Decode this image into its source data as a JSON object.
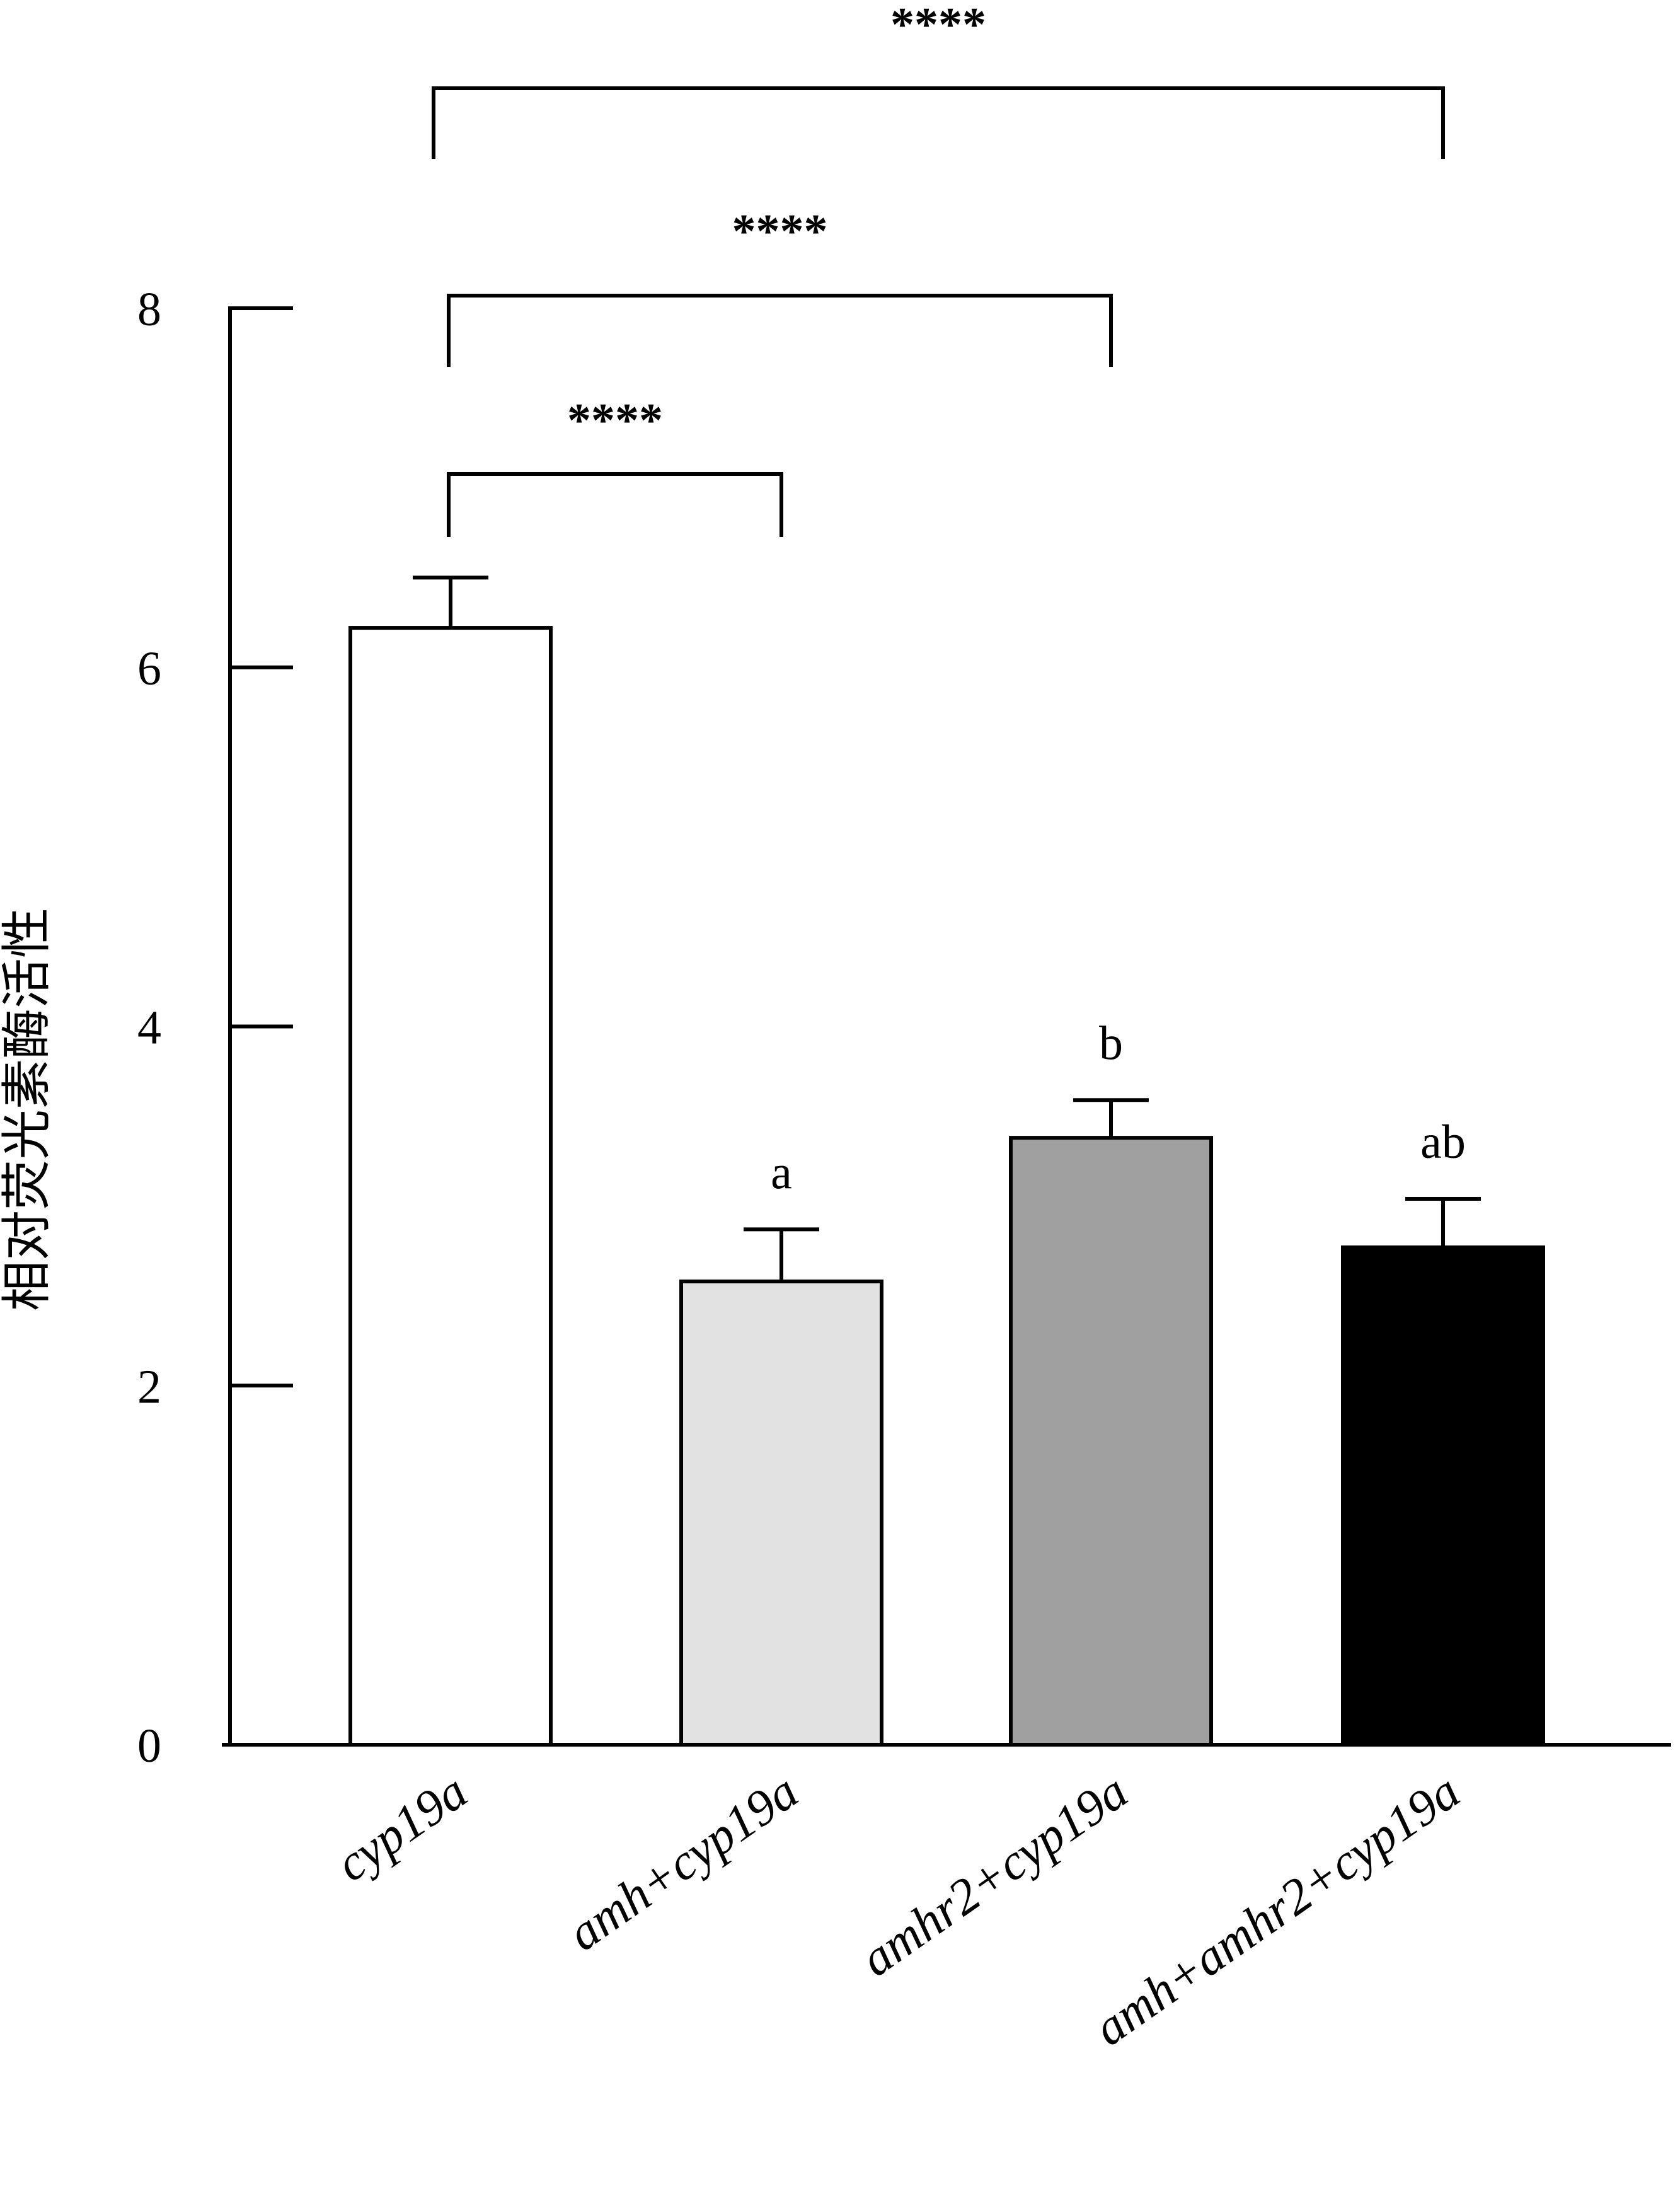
{
  "chart_data": {
    "type": "bar",
    "ylabel": "相对荧光素酶活性",
    "xlabel": "",
    "ylim": [
      0,
      8
    ],
    "yticks": [
      0,
      2,
      4,
      6,
      8
    ],
    "grid": false,
    "categories": [
      "cyp19a",
      "amh+cyp19a",
      "amhr2+cyp19a",
      "amh+amhr2+cyp19a"
    ],
    "values": [
      6.22,
      2.58,
      3.38,
      2.77
    ],
    "errors": [
      0.28,
      0.29,
      0.21,
      0.27
    ],
    "bar_colors": [
      "#ffffff",
      "#e2e2e2",
      "#a0a0a0",
      "#000000"
    ],
    "letters": [
      "",
      "a",
      "b",
      "ab"
    ],
    "comparisons": [
      {
        "from": 0,
        "to": 1,
        "label": "****"
      },
      {
        "from": 0,
        "to": 2,
        "label": "****"
      },
      {
        "from": 0,
        "to": 3,
        "label": "****"
      }
    ]
  }
}
